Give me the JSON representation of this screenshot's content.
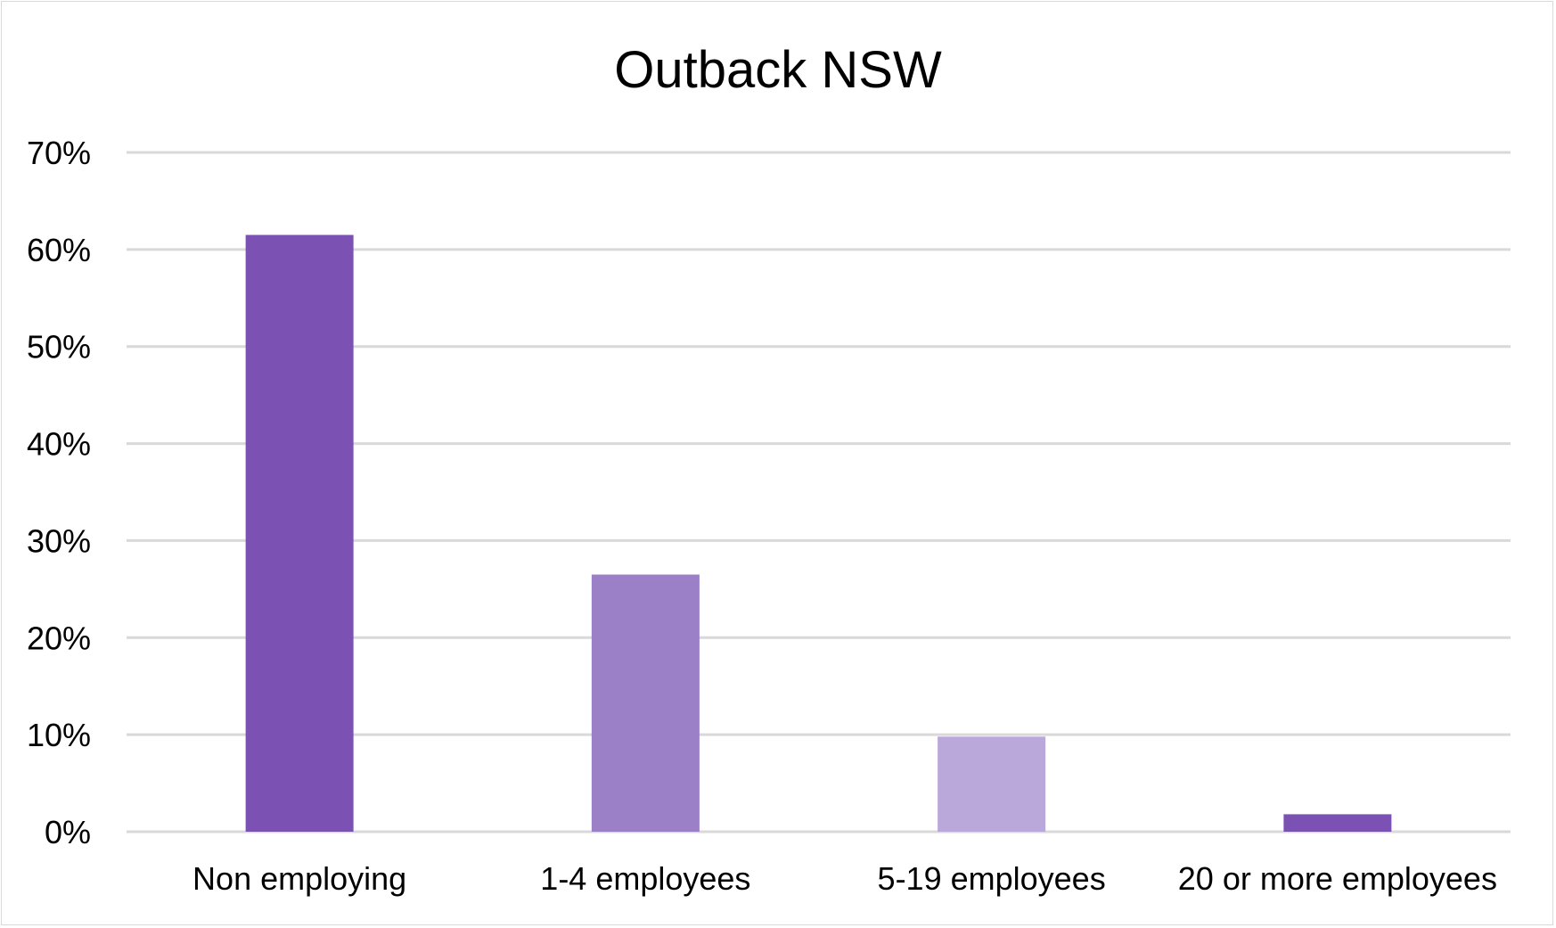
{
  "chart_data": {
    "type": "bar",
    "title": "Outback NSW",
    "categories": [
      "Non employing",
      "1-4 employees",
      "5-19 employees",
      "20 or more employees"
    ],
    "values": [
      61.5,
      26.5,
      9.8,
      1.8
    ],
    "value_unit": "%",
    "ylim": [
      0,
      70
    ],
    "yticks": [
      0,
      10,
      20,
      30,
      40,
      50,
      60,
      70
    ],
    "ytick_labels": [
      "0%",
      "10%",
      "20%",
      "30%",
      "40%",
      "50%",
      "60%",
      "70%"
    ],
    "xlabel": "",
    "ylabel": "",
    "grid": true,
    "legend": "none",
    "bar_colors": [
      "#7b52b3",
      "#9b7fc7",
      "#bba8da",
      "#7b52b3"
    ]
  }
}
